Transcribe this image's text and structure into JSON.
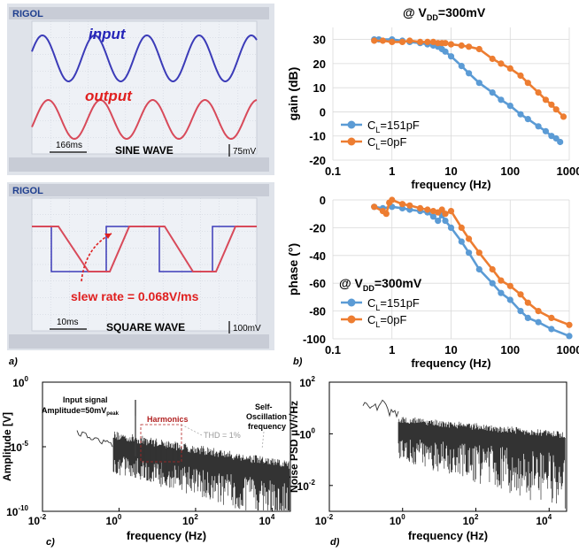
{
  "colors": {
    "blue": "#5b9bd5",
    "orange": "#ed7d31",
    "scope_bg": "#eef1f6",
    "scope_grid": "#c9ced8",
    "ch1": "#3b3bb8",
    "ch2": "#d84a5a",
    "dark": "#333333"
  },
  "panel_a": {
    "label": "a)",
    "scope1": {
      "brand": "RIGOL",
      "input_label": "input",
      "output_label": "output",
      "time_scale": "166ms",
      "wave_name": "SINE WAVE",
      "volt_scale": "75mV"
    },
    "scope2": {
      "brand": "RIGOL",
      "slew_label": "slew rate = 0.068V/ms",
      "time_scale": "10ms",
      "wave_name": "SQUARE WAVE",
      "volt_scale": "100mV"
    }
  },
  "panel_b": {
    "label": "b)"
  },
  "panel_c": {
    "label": "c)",
    "ann_input1": "Input signal",
    "ann_input2": "Amplitude=50mV",
    "ann_input_sub": "peak",
    "ann_harm": "Harmonics",
    "ann_thd": "THD = 1%",
    "ann_self1": "Self-",
    "ann_self2": "Oscillation",
    "ann_self3": "frequency"
  },
  "panel_d": {
    "label": "d)"
  },
  "chart_data": [
    {
      "type": "line",
      "title": "@ VDD=300mV",
      "xlabel": "frequency (Hz)",
      "ylabel": "gain (dB)",
      "xscale": "log",
      "xlim": [
        0.1,
        1000
      ],
      "ylim": [
        -20,
        35
      ],
      "xticks": [
        "0.1",
        "1",
        "10",
        "100",
        "1000"
      ],
      "yticks": [
        "30",
        "20",
        "10",
        "0",
        "-10",
        "-20"
      ],
      "legend": "bottom-left",
      "series": [
        {
          "name": "CL=151pF",
          "color": "#5b9bd5",
          "points": [
            [
              0.5,
              30
            ],
            [
              0.6,
              30
            ],
            [
              1,
              30
            ],
            [
              1.5,
              29.5
            ],
            [
              2,
              29
            ],
            [
              3,
              28.5
            ],
            [
              4,
              28
            ],
            [
              5,
              27.5
            ],
            [
              6,
              27
            ],
            [
              7,
              26
            ],
            [
              8,
              25
            ],
            [
              10,
              23
            ],
            [
              15,
              19
            ],
            [
              20,
              16
            ],
            [
              30,
              12
            ],
            [
              50,
              8
            ],
            [
              70,
              5
            ],
            [
              100,
              2.5
            ],
            [
              150,
              -1
            ],
            [
              200,
              -3
            ],
            [
              300,
              -6
            ],
            [
              400,
              -8
            ],
            [
              500,
              -10
            ],
            [
              600,
              -11
            ],
            [
              700,
              -12.5
            ]
          ]
        },
        {
          "name": "CL=0pF",
          "color": "#ed7d31",
          "points": [
            [
              0.5,
              29.5
            ],
            [
              0.7,
              29.5
            ],
            [
              1,
              29
            ],
            [
              1.5,
              29
            ],
            [
              2,
              29.5
            ],
            [
              3,
              29
            ],
            [
              4,
              29
            ],
            [
              5,
              29
            ],
            [
              6,
              28.5
            ],
            [
              7,
              28.5
            ],
            [
              8,
              28.5
            ],
            [
              10,
              28
            ],
            [
              15,
              27.5
            ],
            [
              20,
              27
            ],
            [
              30,
              26
            ],
            [
              50,
              22
            ],
            [
              70,
              20
            ],
            [
              100,
              18
            ],
            [
              150,
              15
            ],
            [
              200,
              12
            ],
            [
              300,
              8
            ],
            [
              400,
              5
            ],
            [
              500,
              3
            ],
            [
              600,
              1
            ],
            [
              800,
              -2
            ]
          ]
        }
      ]
    },
    {
      "type": "line",
      "title": "@ VDD=300mV",
      "xlabel": "frequency (Hz)",
      "ylabel": "phase (°)",
      "xscale": "log",
      "xlim": [
        0.1,
        1000
      ],
      "ylim": [
        -100,
        0
      ],
      "xticks": [
        "0.1",
        "1",
        "10",
        "100",
        "1000"
      ],
      "yticks": [
        "0",
        "-20",
        "-40",
        "-60",
        "-80",
        "-100"
      ],
      "legend": "bottom-left",
      "series": [
        {
          "name": "CL=151pF",
          "color": "#5b9bd5",
          "points": [
            [
              0.5,
              -5
            ],
            [
              0.7,
              -6
            ],
            [
              1,
              -5
            ],
            [
              1.5,
              -6
            ],
            [
              2,
              -7
            ],
            [
              3,
              -8
            ],
            [
              4,
              -9
            ],
            [
              5,
              -12
            ],
            [
              6,
              -15
            ],
            [
              7,
              -11
            ],
            [
              8,
              -15
            ],
            [
              10,
              -20
            ],
            [
              15,
              -30
            ],
            [
              20,
              -38
            ],
            [
              30,
              -50
            ],
            [
              50,
              -60
            ],
            [
              70,
              -67
            ],
            [
              100,
              -72
            ],
            [
              150,
              -80
            ],
            [
              200,
              -85
            ],
            [
              300,
              -88
            ],
            [
              500,
              -93
            ],
            [
              1000,
              -98
            ]
          ]
        },
        {
          "name": "CL=0pF",
          "color": "#ed7d31",
          "points": [
            [
              0.5,
              -5
            ],
            [
              0.7,
              -8
            ],
            [
              0.8,
              -10
            ],
            [
              0.9,
              -2
            ],
            [
              1,
              0
            ],
            [
              1.5,
              -3
            ],
            [
              2,
              -4
            ],
            [
              3,
              -6
            ],
            [
              4,
              -7
            ],
            [
              5,
              -8
            ],
            [
              6,
              -9
            ],
            [
              7,
              -7
            ],
            [
              8,
              -10
            ],
            [
              10,
              -8
            ],
            [
              15,
              -20
            ],
            [
              20,
              -28
            ],
            [
              30,
              -38
            ],
            [
              50,
              -50
            ],
            [
              70,
              -58
            ],
            [
              100,
              -62
            ],
            [
              150,
              -68
            ],
            [
              200,
              -74
            ],
            [
              300,
              -80
            ],
            [
              500,
              -85
            ],
            [
              1000,
              -90
            ]
          ]
        }
      ]
    },
    {
      "type": "line",
      "xlabel": "frequency (Hz)",
      "ylabel": "Amplitude [V]",
      "xscale": "log",
      "yscale": "log",
      "xlim": [
        0.01,
        30000
      ],
      "ylim": [
        1e-10,
        1
      ],
      "xticks": [
        "10",
        "10",
        "10",
        "10"
      ],
      "xtick_exps": [
        "-2",
        "0",
        "2",
        "4"
      ],
      "yticks": [
        "10",
        "10",
        "10"
      ],
      "ytick_exps": [
        "0",
        "-5",
        "-10"
      ],
      "series": [
        {
          "color": "#333333",
          "description": "spectrum",
          "input_peak": [
            2,
            0.05
          ]
        }
      ]
    },
    {
      "type": "line",
      "xlabel": "frequency (Hz)",
      "ylabel": "Noise PSD μV/√Hz",
      "xscale": "log",
      "yscale": "log",
      "xlim": [
        0.01,
        30000
      ],
      "ylim": [
        0.001,
        100
      ],
      "xticks": [
        "10",
        "10",
        "10",
        "10"
      ],
      "xtick_exps": [
        "-2",
        "0",
        "2",
        "4"
      ],
      "yticks": [
        "10",
        "10",
        "10"
      ],
      "ytick_exps": [
        "2",
        "0",
        "-2"
      ],
      "series": [
        {
          "color": "#333333"
        }
      ]
    }
  ]
}
